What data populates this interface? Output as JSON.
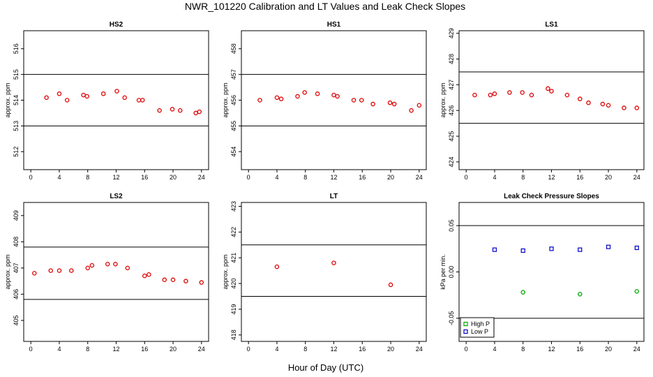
{
  "figure": {
    "title": "NWR_101220  Calibration and LT Values and Leak Check Slopes",
    "xlabel": "Hour of Day (UTC)"
  },
  "colors": {
    "cal": "#dd0000",
    "high_p": "#00aa00",
    "low_p": "#0000cc",
    "axis": "#000000"
  },
  "chart_data": [
    {
      "type": "scatter",
      "title": "HS2",
      "ylabel": "approx. ppm",
      "xlim": [
        -1,
        25
      ],
      "ylim": [
        511.3,
        516.7
      ],
      "xticks": [
        0,
        4,
        8,
        12,
        16,
        20,
        24
      ],
      "yticks": [
        512,
        513,
        514,
        515,
        516
      ],
      "hlines": [
        515.0,
        513.0
      ],
      "grid": false,
      "series": [
        {
          "color": "#dd0000",
          "x": [
            2.2,
            4.0,
            5.1,
            7.4,
            7.9,
            10.2,
            12.1,
            13.2,
            15.2,
            15.7,
            18.1,
            19.9,
            21.0,
            23.2,
            23.7
          ],
          "y": [
            514.1,
            514.25,
            514.0,
            514.2,
            514.15,
            514.25,
            514.35,
            514.1,
            514.0,
            514.0,
            513.6,
            513.65,
            513.6,
            513.5,
            513.55
          ]
        }
      ]
    },
    {
      "type": "scatter",
      "title": "HS1",
      "ylabel": "approx. ppm",
      "xlim": [
        -1,
        25
      ],
      "ylim": [
        453.3,
        458.7
      ],
      "xticks": [
        0,
        4,
        8,
        12,
        16,
        20,
        24
      ],
      "yticks": [
        454,
        455,
        456,
        457,
        458
      ],
      "hlines": [
        457.0,
        455.0
      ],
      "grid": false,
      "series": [
        {
          "color": "#dd0000",
          "x": [
            1.6,
            4.0,
            4.6,
            6.9,
            7.9,
            9.7,
            12.0,
            12.5,
            14.8,
            15.9,
            17.5,
            19.9,
            20.5,
            22.9,
            24.0
          ],
          "y": [
            456.0,
            456.1,
            456.05,
            456.15,
            456.3,
            456.25,
            456.2,
            456.15,
            456.0,
            456.0,
            455.85,
            455.9,
            455.85,
            455.6,
            455.8
          ]
        }
      ]
    },
    {
      "type": "scatter",
      "title": "LS1",
      "ylabel": "approx. ppm",
      "xlim": [
        -1,
        25
      ],
      "ylim": [
        423.7,
        429.1
      ],
      "xticks": [
        0,
        4,
        8,
        12,
        16,
        20,
        24
      ],
      "yticks": [
        424,
        425,
        426,
        427,
        428,
        429
      ],
      "hlines": [
        427.5,
        425.5
      ],
      "grid": false,
      "series": [
        {
          "color": "#dd0000",
          "x": [
            1.2,
            3.4,
            4.0,
            6.1,
            7.9,
            9.2,
            11.5,
            12.0,
            14.2,
            16.0,
            17.2,
            19.2,
            20.0,
            22.2,
            24.0
          ],
          "y": [
            426.6,
            426.6,
            426.65,
            426.7,
            426.7,
            426.6,
            426.85,
            426.75,
            426.6,
            426.45,
            426.3,
            426.25,
            426.2,
            426.1,
            426.1
          ]
        }
      ]
    },
    {
      "type": "scatter",
      "title": "LS2",
      "ylabel": "approx. ppm",
      "xlim": [
        -1,
        25
      ],
      "ylim": [
        404.2,
        409.5
      ],
      "xticks": [
        0,
        4,
        8,
        12,
        16,
        20,
        24
      ],
      "yticks": [
        405,
        406,
        407,
        408,
        409
      ],
      "hlines": [
        407.8,
        405.8
      ],
      "grid": false,
      "series": [
        {
          "color": "#dd0000",
          "x": [
            0.5,
            2.8,
            4.0,
            5.7,
            8.0,
            8.6,
            10.8,
            11.9,
            13.6,
            16.0,
            16.6,
            18.8,
            20.0,
            21.8,
            24.0
          ],
          "y": [
            406.8,
            406.9,
            406.9,
            406.9,
            407.0,
            407.1,
            407.15,
            407.15,
            407.0,
            406.7,
            406.75,
            406.55,
            406.55,
            406.5,
            406.45
          ]
        }
      ]
    },
    {
      "type": "scatter",
      "title": "LT",
      "ylabel": "approx. ppm",
      "xlim": [
        -1,
        25
      ],
      "ylim": [
        417.75,
        423.15
      ],
      "xticks": [
        0,
        4,
        8,
        12,
        16,
        20,
        24
      ],
      "yticks": [
        418,
        419,
        420,
        421,
        422,
        423
      ],
      "hlines": [
        421.5,
        419.5
      ],
      "grid": false,
      "series": [
        {
          "color": "#dd0000",
          "x": [
            4.0,
            12.0,
            20.0
          ],
          "y": [
            420.65,
            420.8,
            419.95
          ]
        }
      ]
    },
    {
      "type": "scatter",
      "title": "Leak Check Pressure Slopes",
      "ylabel": "kPa per min.",
      "xlim": [
        -1,
        25
      ],
      "ylim": [
        -0.075,
        0.075
      ],
      "xticks": [
        0,
        4,
        8,
        12,
        16,
        20,
        24
      ],
      "ytick_values": [
        -0.05,
        0.0,
        0.05
      ],
      "ytick_labels": [
        "-0.05",
        "0.00",
        "0.05"
      ],
      "hlines": [
        0.05,
        -0.05
      ],
      "grid": false,
      "legend": "bottom-left",
      "series": [
        {
          "name": "High P",
          "color": "#00aa00",
          "x": [
            8.0,
            16.0,
            24.0
          ],
          "y": [
            -0.022,
            -0.024,
            -0.021
          ]
        },
        {
          "name": "Low P",
          "color": "#0000cc",
          "x": [
            4.0,
            8.0,
            12.0,
            16.0,
            20.0,
            24.0
          ],
          "y": [
            0.024,
            0.023,
            0.025,
            0.024,
            0.027,
            0.026
          ]
        }
      ]
    }
  ]
}
